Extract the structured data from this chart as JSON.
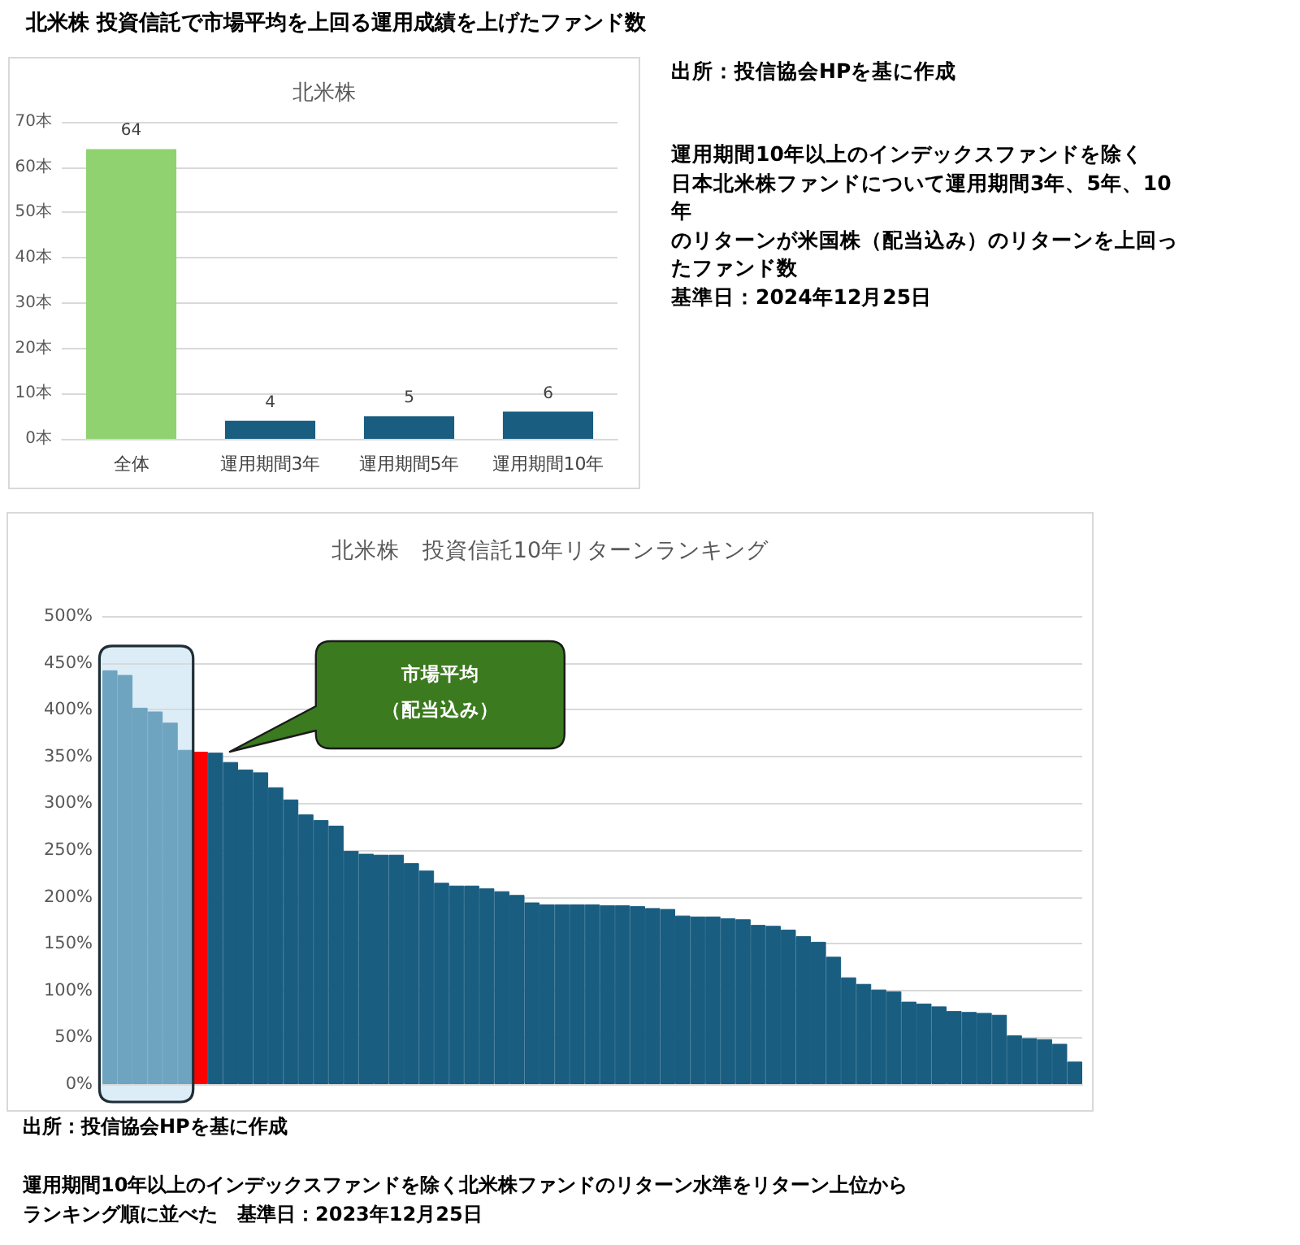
{
  "chart_data": [
    {
      "type": "bar",
      "title": "北米株",
      "categories": [
        "全体",
        "運用期間3年",
        "運用期間5年",
        "運用期間10年"
      ],
      "values": [
        64,
        4,
        5,
        6
      ],
      "colors": [
        "#8fd26f",
        "#195d80",
        "#195d80",
        "#195d80"
      ],
      "ylim": [
        0,
        70
      ],
      "yticks": [
        {
          "value": 0,
          "label": "0本"
        },
        {
          "value": 10,
          "label": "10本"
        },
        {
          "value": 20,
          "label": "20本"
        },
        {
          "value": 30,
          "label": "30本"
        },
        {
          "value": 40,
          "label": "40本"
        },
        {
          "value": 50,
          "label": "50本"
        },
        {
          "value": 60,
          "label": "60本"
        },
        {
          "value": 70,
          "label": "70本"
        }
      ],
      "grid": "y",
      "data_labels": true,
      "annotations": [
        "北米株 投資信託で市場平均を上回る運用成績を上げたファンド数",
        "出所：投信協会HPを基に作成",
        "運用期間10年以上のインデックスファンドを除く",
        "日本北米株ファンドについて運用期間3年、5年、10年",
        "のリターンが米国株（配当込み）のリターンを上回ったファンド数",
        "基準日：2024年12月25日"
      ]
    },
    {
      "type": "bar",
      "title": "北米株　投資信託10年リターンランキング",
      "categories": [
        null,
        null,
        null,
        null,
        null,
        null,
        null,
        null,
        null,
        null,
        null,
        null,
        null,
        null,
        null,
        null,
        null,
        null,
        null,
        null,
        null,
        null,
        null,
        null,
        null,
        null,
        null,
        null,
        null,
        null,
        null,
        null,
        null,
        null,
        null,
        null,
        null,
        null,
        null,
        null,
        null,
        null,
        null,
        null,
        null,
        null,
        null,
        null,
        null,
        null,
        null,
        null,
        null,
        null,
        null,
        null,
        null,
        null,
        null,
        null,
        null,
        null,
        null,
        null,
        null
      ],
      "values": [
        442,
        437,
        402,
        398,
        386,
        357,
        355,
        354,
        344,
        336,
        333,
        317,
        304,
        288,
        282,
        276,
        249,
        246,
        245,
        245,
        236,
        228,
        215,
        212,
        212,
        209,
        206,
        202,
        194,
        192,
        192,
        192,
        192,
        191,
        191,
        190,
        188,
        187,
        180,
        179,
        179,
        177,
        176,
        170,
        169,
        165,
        158,
        152,
        136,
        114,
        107,
        101,
        99,
        88,
        86,
        83,
        78,
        77,
        76,
        74,
        52,
        49,
        48,
        43,
        24
      ],
      "colors": [
        "#6ea4bf",
        "#6ea4bf",
        "#6ea4bf",
        "#6ea4bf",
        "#6ea4bf",
        "#6ea4bf",
        "#ff0000",
        "#195d80",
        "#195d80",
        "#195d80",
        "#195d80",
        "#195d80",
        "#195d80",
        "#195d80",
        "#195d80",
        "#195d80",
        "#195d80",
        "#195d80",
        "#195d80",
        "#195d80",
        "#195d80",
        "#195d80",
        "#195d80",
        "#195d80",
        "#195d80",
        "#195d80",
        "#195d80",
        "#195d80",
        "#195d80",
        "#195d80",
        "#195d80",
        "#195d80",
        "#195d80",
        "#195d80",
        "#195d80",
        "#195d80",
        "#195d80",
        "#195d80",
        "#195d80",
        "#195d80",
        "#195d80",
        "#195d80",
        "#195d80",
        "#195d80",
        "#195d80",
        "#195d80",
        "#195d80",
        "#195d80",
        "#195d80",
        "#195d80",
        "#195d80",
        "#195d80",
        "#195d80",
        "#195d80",
        "#195d80",
        "#195d80",
        "#195d80",
        "#195d80",
        "#195d80",
        "#195d80",
        "#195d80",
        "#195d80",
        "#195d80",
        "#195d80",
        "#195d80"
      ],
      "ylim": [
        0,
        500
      ],
      "yticks": [
        {
          "value": 0,
          "label": "0%"
        },
        {
          "value": 50,
          "label": "50%"
        },
        {
          "value": 100,
          "label": "100%"
        },
        {
          "value": 150,
          "label": "150%"
        },
        {
          "value": 200,
          "label": "200%"
        },
        {
          "value": 250,
          "label": "250%"
        },
        {
          "value": 300,
          "label": "300%"
        },
        {
          "value": 350,
          "label": "350%"
        },
        {
          "value": 400,
          "label": "400%"
        },
        {
          "value": 450,
          "label": "450%"
        },
        {
          "value": 500,
          "label": "500%"
        }
      ],
      "grid": "y",
      "tick_labels": "y",
      "annotations": [
        "市場平均",
        "（配当込み）",
        "出所：投信協会HPを基に作成",
        "運用期間10年以上のインデックスファンドを除く北米株ファンドのリターン水準をリターン上位からランキング順に並べた　基準日：2023年12月25日"
      ]
    }
  ]
}
